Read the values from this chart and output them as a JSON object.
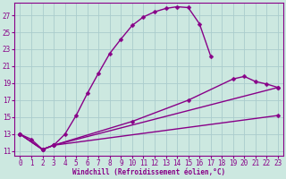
{
  "xlabel": "Windchill (Refroidissement éolien,°C)",
  "background_color": "#cce8e0",
  "grid_color": "#aacccc",
  "line_color": "#880088",
  "xlim": [
    -0.5,
    23.5
  ],
  "ylim": [
    10.5,
    28.5
  ],
  "xticks": [
    0,
    1,
    2,
    3,
    4,
    5,
    6,
    7,
    8,
    9,
    10,
    11,
    12,
    13,
    14,
    15,
    16,
    17,
    18,
    19,
    20,
    21,
    22,
    23
  ],
  "yticks": [
    11,
    13,
    15,
    17,
    19,
    21,
    23,
    25,
    27
  ],
  "curve1_x": [
    0,
    1,
    2,
    3,
    4,
    5,
    6,
    7,
    8,
    9,
    10,
    11,
    12,
    13,
    14,
    15,
    16,
    17
  ],
  "curve1_y": [
    13.0,
    12.4,
    11.2,
    11.7,
    13.0,
    15.2,
    17.8,
    20.2,
    22.5,
    24.2,
    25.8,
    26.8,
    27.4,
    27.8,
    28.0,
    27.9,
    26.0,
    22.2
  ],
  "curve2_x": [
    0,
    2,
    3,
    23
  ],
  "curve2_y": [
    13.0,
    11.2,
    11.7,
    18.5
  ],
  "curve3_x": [
    0,
    2,
    3,
    10,
    15,
    19,
    20,
    21,
    22,
    23
  ],
  "curve3_y": [
    13.0,
    11.2,
    11.7,
    14.5,
    17.0,
    19.5,
    19.8,
    19.2,
    18.9,
    18.5
  ],
  "curve4_x": [
    0,
    2,
    3,
    23
  ],
  "curve4_y": [
    13.0,
    11.2,
    11.7,
    15.2
  ],
  "markersize": 2.5,
  "linewidth": 1.0,
  "tick_fontsize": 5.5,
  "xlabel_fontsize": 5.5
}
